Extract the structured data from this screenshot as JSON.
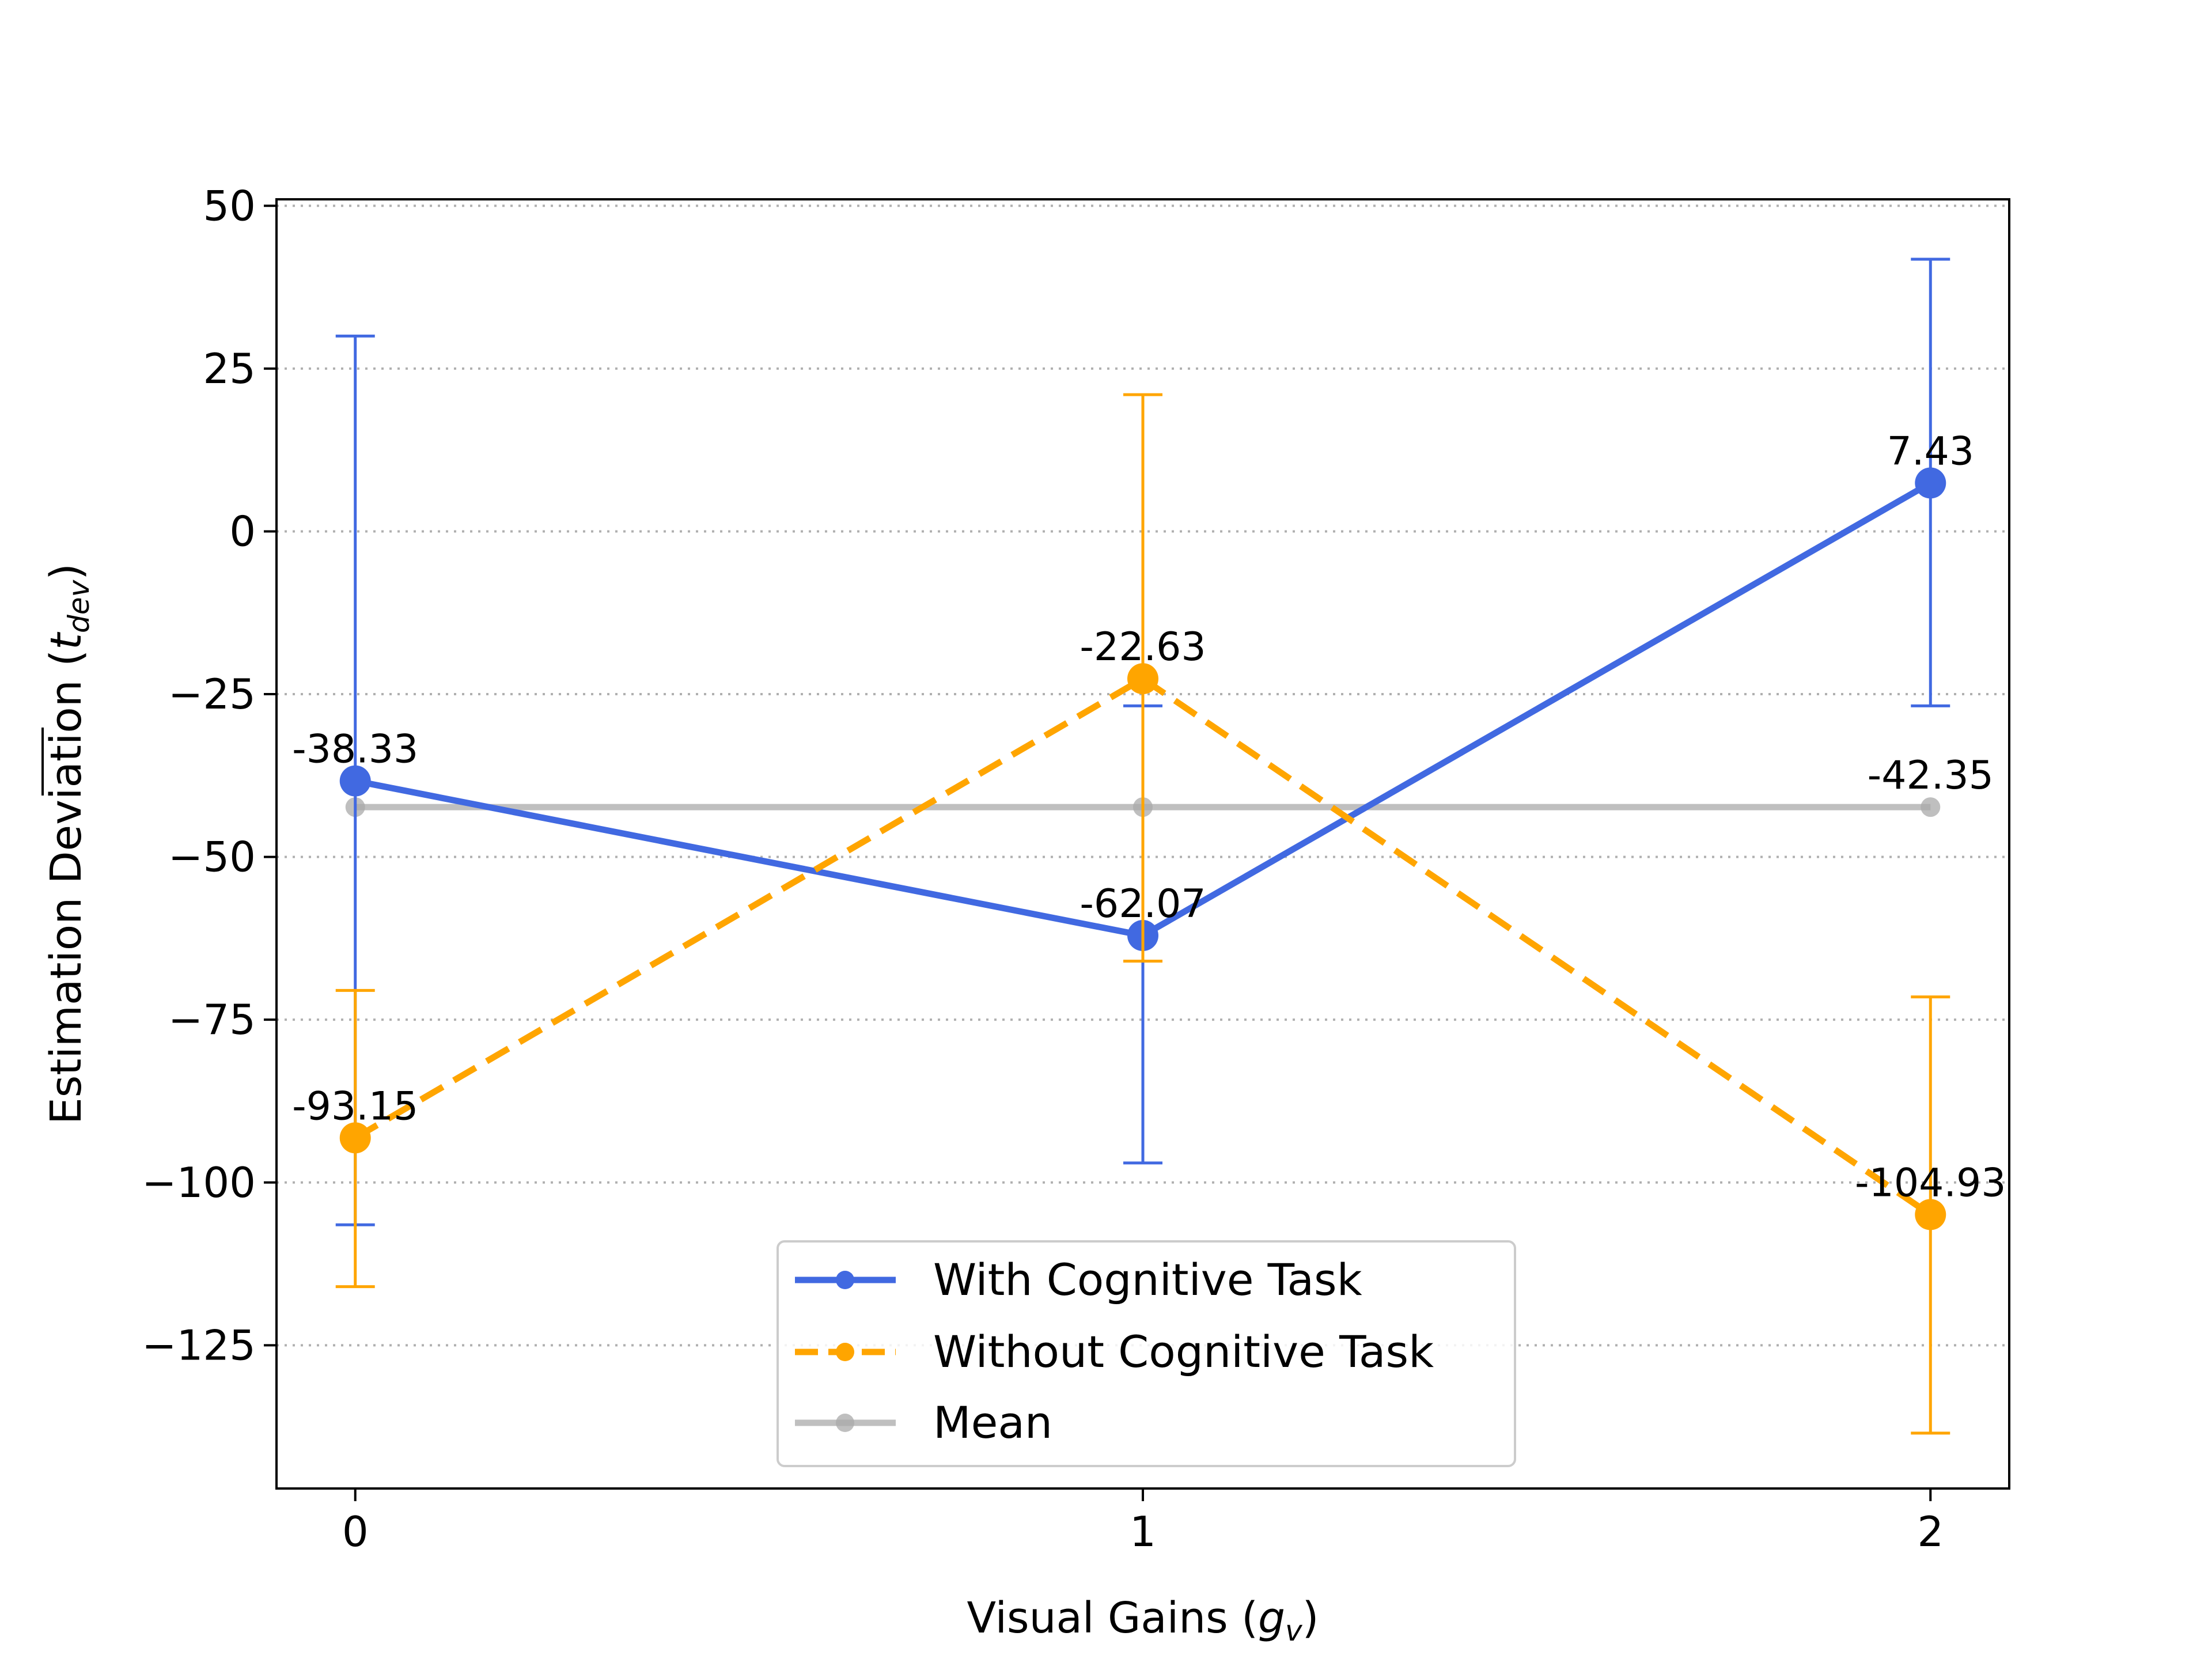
{
  "chart_data": {
    "type": "line",
    "xlabel": "Visual Gains (g_v)",
    "ylabel": "Estimation Deviation (t_dev)",
    "x": [
      0,
      1,
      2
    ],
    "xticks": [
      "0",
      "1",
      "2"
    ],
    "yticks": [
      "50",
      "25",
      "0",
      "−25",
      "−50",
      "−75",
      "−100",
      "−125"
    ],
    "ytick_values": [
      50,
      25,
      0,
      -25,
      -50,
      -75,
      -100,
      -125
    ],
    "xlim": [
      -0.1,
      2.1
    ],
    "ylim": [
      -147,
      51
    ],
    "grid": "y dotted",
    "legend_position": "bottom-center",
    "series": [
      {
        "name": "With Cognitive Task",
        "values": [
          -38.33,
          -62.07,
          7.43
        ],
        "labels": [
          "-38.33",
          "-62.07",
          "7.43"
        ],
        "err_low": [
          -106.5,
          -97.0,
          -26.8
        ],
        "err_high": [
          30.0,
          -26.8,
          41.8
        ],
        "color": "#4169e1",
        "style": "solid"
      },
      {
        "name": "Without Cognitive Task",
        "values": [
          -93.15,
          -22.63,
          -104.93
        ],
        "labels": [
          "-93.15",
          "-22.63",
          "-104.93"
        ],
        "err_low": [
          -116.0,
          -66.0,
          -138.5
        ],
        "err_high": [
          -70.5,
          21.0,
          -71.5
        ],
        "color": "#ffa500",
        "style": "dashed"
      },
      {
        "name": "Mean",
        "values": [
          -42.35,
          -42.35,
          -42.35
        ],
        "labels": [
          "",
          "",
          "-42.35"
        ],
        "color": "#a9a9a9",
        "style": "solid"
      }
    ]
  }
}
